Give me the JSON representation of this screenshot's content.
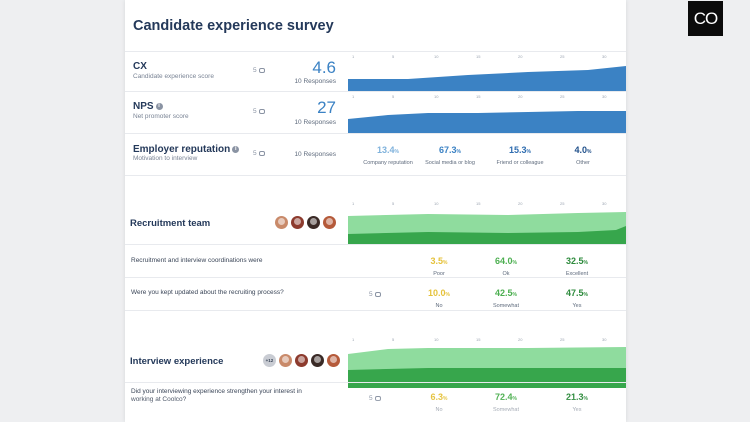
{
  "survey": {
    "title": "Candidate experience survey"
  },
  "ticks": [
    "1",
    "5",
    "10",
    "15",
    "20",
    "25",
    "30"
  ],
  "sections": [
    {
      "key": "cx",
      "label": "CX",
      "sublabel": "Candidate experience score",
      "comments": "5",
      "score": "4.6",
      "responses": "10 Responses"
    },
    {
      "key": "nps",
      "label": "NPS",
      "sublabel": "Net promoter score",
      "comments": "5",
      "score": "27",
      "responses": "10 Responses"
    },
    {
      "key": "employer",
      "label": "Employer reputation",
      "sublabel": "Motivation to interview",
      "comments": "5",
      "responses": "10 Responses",
      "stats": [
        {
          "value": "13.4",
          "unit": "%",
          "label": "Company reputation",
          "color": "#7fb2dc"
        },
        {
          "value": "67.3",
          "unit": "%",
          "label": "Social media or blog",
          "color": "#3b82c4"
        },
        {
          "value": "15.3",
          "unit": "%",
          "label": "Friend or colleague",
          "color": "#2f6db0"
        },
        {
          "value": "4.0",
          "unit": "%",
          "label": "Other",
          "color": "#1f4f8a"
        }
      ]
    }
  ],
  "recruitment": {
    "title": "Recruitment team",
    "questions": [
      {
        "text": "Recruitment and interview coordinations were",
        "comments": "",
        "stats": [
          {
            "value": "3.5",
            "unit": "%",
            "label": "Poor",
            "color": "#e5c23b"
          },
          {
            "value": "64.0",
            "unit": "%",
            "label": "Ok",
            "color": "#4caf50"
          },
          {
            "value": "32.5",
            "unit": "%",
            "label": "Excellent",
            "color": "#2e8b3d"
          }
        ]
      },
      {
        "text": "Were you kept updated about the recruiting process?",
        "comments": "5",
        "stats": [
          {
            "value": "10.0",
            "unit": "%",
            "label": "No",
            "color": "#e5c23b"
          },
          {
            "value": "42.5",
            "unit": "%",
            "label": "Somewhat",
            "color": "#4caf50"
          },
          {
            "value": "47.5",
            "unit": "%",
            "label": "Yes",
            "color": "#2e8b3d"
          }
        ]
      }
    ]
  },
  "interview": {
    "title": "Interview experience",
    "extra_count": "+12",
    "questions": [
      {
        "text": "Did your interviewing experience strengthen your interest in working at Coolco?",
        "comments": "5",
        "stats": [
          {
            "value": "6.3",
            "unit": "%",
            "label": "No",
            "color": "#e5c23b"
          },
          {
            "value": "72.4",
            "unit": "%",
            "label": "Somewhat",
            "color": "#4caf50"
          },
          {
            "value": "21.3",
            "unit": "%",
            "label": "Yes",
            "color": "#2e8b3d"
          }
        ]
      }
    ]
  },
  "colors": {
    "blue": "#3b82c4",
    "green_light": "#8fdc9e",
    "green_dark": "#37a64c"
  },
  "logo": {
    "text": "CO"
  }
}
